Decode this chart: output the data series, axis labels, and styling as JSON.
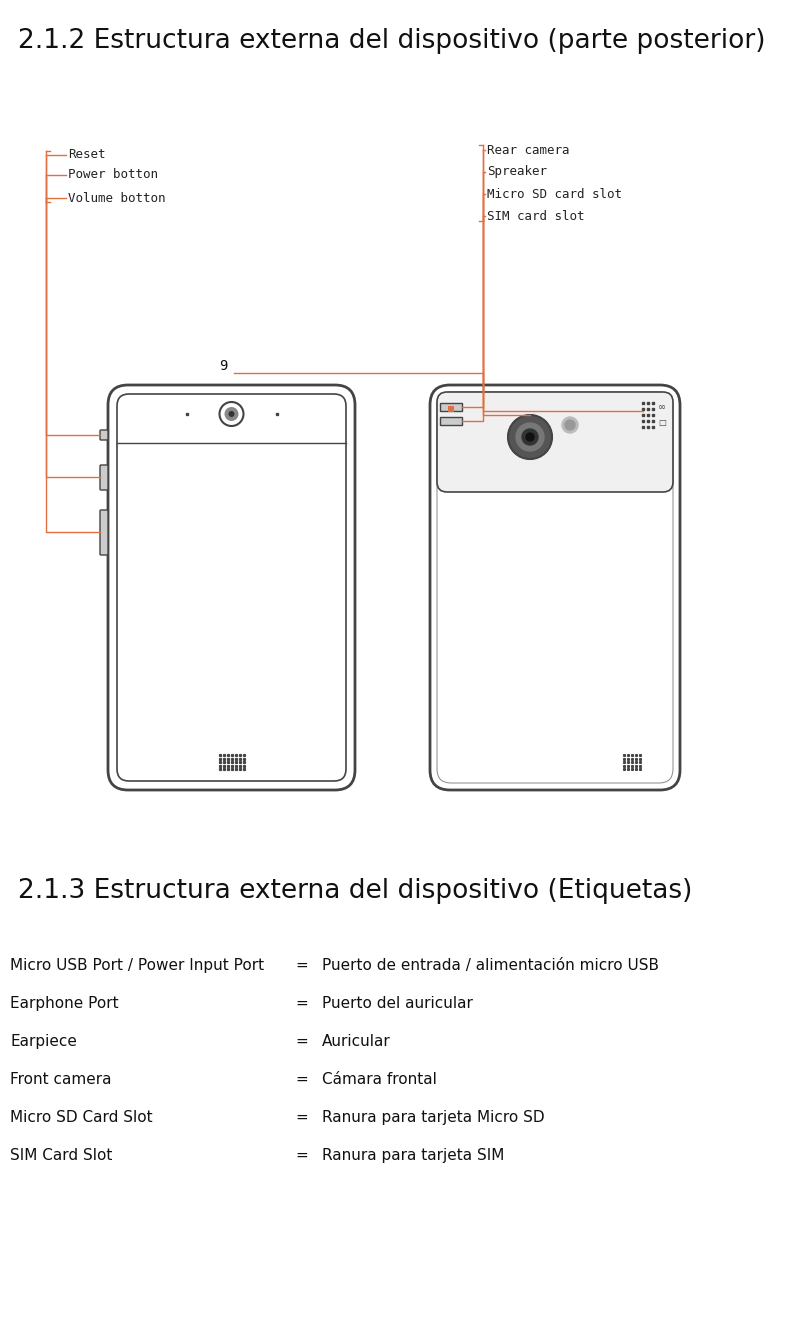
{
  "title1": "2.1.2 Estructura externa del dispositivo (parte posterior)",
  "title2": "2.1.3 Estructura externa del dispositivo (Etiquetas)",
  "title1_fontsize": 19,
  "title2_fontsize": 19,
  "bg_color": "#ffffff",
  "text_color": "#111111",
  "line_color": "#e07040",
  "phone_color": "#444444",
  "mono_color": "#222222",
  "left_labels": [
    "Reset",
    "Power botton",
    "Volume botton"
  ],
  "right_labels": [
    "Rear camera",
    "Spreaker",
    "Micro SD card slot",
    "SIM card slot"
  ],
  "number_label": "9",
  "labels_section": [
    [
      "Micro USB Port / Power Input Port",
      "=",
      "Puerto de entrada / alimentación micro USB"
    ],
    [
      "Earphone Port",
      "=",
      "Puerto del auricular"
    ],
    [
      "Earpiece",
      "=",
      "Auricular"
    ],
    [
      "Front camera",
      "=",
      "Cámara frontal"
    ],
    [
      "Micro SD Card Slot",
      "=",
      "Ranura para tarjeta Micro SD"
    ],
    [
      "SIM Card Slot",
      "=",
      "Ranura para tarjeta SIM"
    ]
  ]
}
